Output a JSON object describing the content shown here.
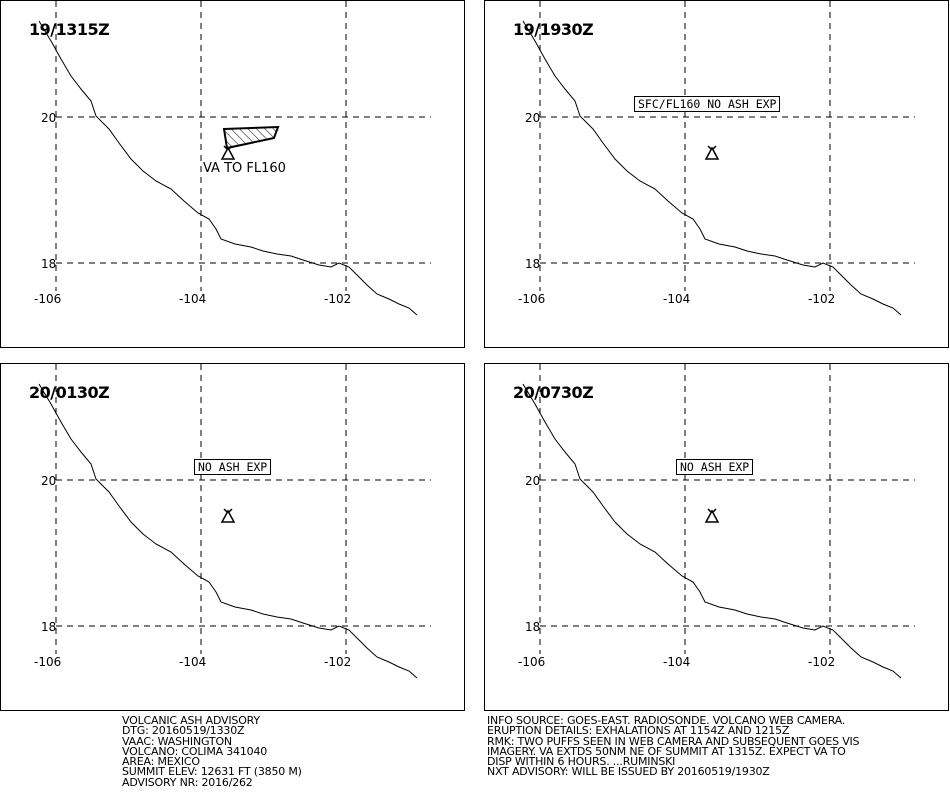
{
  "panels": [
    {
      "time": "19/1315Z",
      "label": "",
      "ash_area": true,
      "ash_label": "VA TO FL160"
    },
    {
      "time": "19/1930Z",
      "label": "SFC/FL160 NO ASH EXP",
      "ash_area": false,
      "ash_label": ""
    },
    {
      "time": "20/0130Z",
      "label": "NO ASH EXP",
      "ash_area": false,
      "ash_label": ""
    },
    {
      "time": "20/0730Z",
      "label": "NO ASH EXP",
      "ash_area": false,
      "ash_label": ""
    }
  ],
  "lat_labels": [
    "20",
    "18"
  ],
  "lon_labels": [
    "-106",
    "-104",
    "-102"
  ],
  "advisory": {
    "left_lines": [
      "VOLCANIC ASH ADVISORY",
      "DTG: 20160519/1330Z",
      "VAAC: WASHINGTON",
      "VOLCANO: COLIMA 341040",
      "AREA: MEXICO",
      "SUMMIT ELEV: 12631 FT (3850 M)",
      "ADVISORY NR: 2016/262"
    ],
    "right_lines": [
      "INFO SOURCE: GOES-EAST. RADIOSONDE. VOLCANO WEB CAMERA.",
      "ERUPTION DETAILS: EXHALATIONS AT 1154Z AND 1215Z",
      "RMK: TWO PUFFS SEEN IN WEB CAMERA AND SUBSEQUENT GOES VIS",
      "IMAGERY. VA EXTDS 50NM NE OF SUMMIT AT 1315Z. EXPECT VA TO",
      "DISP WITHIN 6 HOURS. ...RUMINSKI",
      "NXT ADVISORY: WILL BE ISSUED BY 20160519/1930Z"
    ]
  },
  "icons": {
    "volcano": "volcano-icon"
  }
}
